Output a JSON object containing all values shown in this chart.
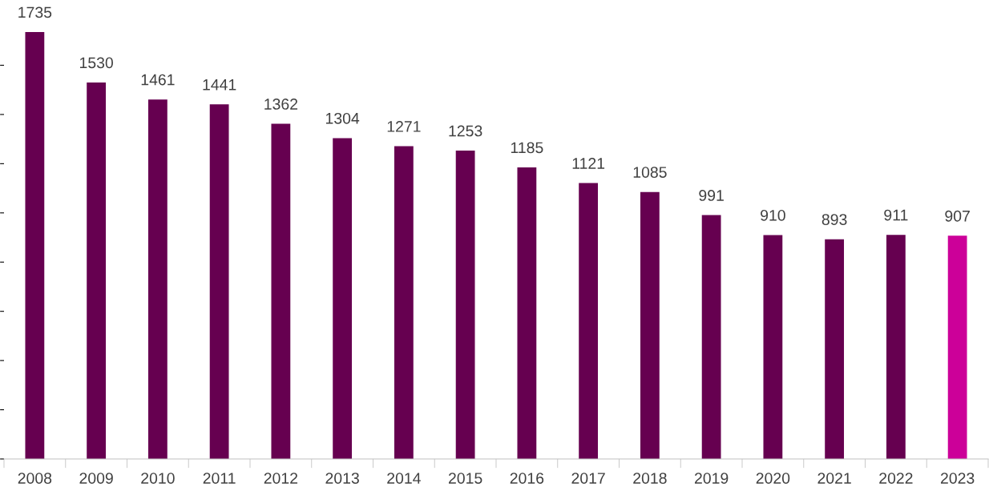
{
  "chart_data": {
    "type": "bar",
    "relative": false,
    "categories": [
      "2008",
      "2009",
      "2010",
      "2011",
      "2012",
      "2013",
      "2014",
      "2015",
      "2016",
      "2017",
      "2018",
      "2019",
      "2020",
      "2021",
      "2022",
      "2023"
    ],
    "values": [
      1735,
      1530,
      1461,
      1441,
      1362,
      1304,
      1271,
      1253,
      1185,
      1121,
      1085,
      991,
      910,
      893,
      911,
      907
    ],
    "colors": [
      "#660050",
      "#660050",
      "#660050",
      "#660050",
      "#660050",
      "#660050",
      "#660050",
      "#660050",
      "#660050",
      "#660050",
      "#660050",
      "#660050",
      "#660050",
      "#660050",
      "#660050",
      "#cc0099"
    ],
    "data_labels": true,
    "grid": false,
    "legend": false
  }
}
